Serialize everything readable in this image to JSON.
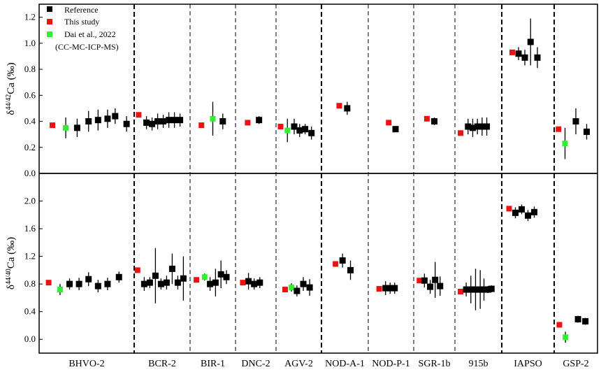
{
  "chart_data": {
    "type": "scatter",
    "categories": [
      "BHVO-2",
      "BCR-2",
      "BIR-1",
      "DNC-2",
      "AGV-2",
      "NOD-A-1",
      "NOD-P-1",
      "SGR-1b",
      "915b",
      "IAPSO",
      "GSP-2"
    ],
    "series_styles": [
      {
        "key": "reference",
        "name": "Reference",
        "color": "#000000"
      },
      {
        "key": "this_study",
        "name": "This study",
        "color": "#ee1111"
      },
      {
        "key": "dai",
        "name": "Dai et al., 2022",
        "color": "#33ee33"
      }
    ],
    "legend_note": "(CC-MC-ICP-MS)",
    "legend_placement": "top-left",
    "panels": [
      {
        "ylabel_base": "δ",
        "ylabel_sup": "44/42",
        "ylabel_rest": "Ca (‰)",
        "ylim": [
          0.0,
          1.3
        ],
        "yticks": [
          "0.0",
          "0.2",
          "0.4",
          "0.6",
          "0.8",
          "1.0",
          "1.2"
        ],
        "points": [
          {
            "cat": 0,
            "off": -0.36,
            "y": 0.37,
            "err": 0.0,
            "series": "this_study"
          },
          {
            "cat": 0,
            "off": -0.22,
            "y": 0.35,
            "err": 0.08,
            "series": "dai"
          },
          {
            "cat": 0,
            "off": -0.1,
            "y": 0.35,
            "err": 0.07,
            "series": "reference"
          },
          {
            "cat": 0,
            "off": 0.02,
            "y": 0.4,
            "err": 0.08,
            "series": "reference"
          },
          {
            "cat": 0,
            "off": 0.12,
            "y": 0.41,
            "err": 0.08,
            "series": "reference"
          },
          {
            "cat": 0,
            "off": 0.22,
            "y": 0.42,
            "err": 0.07,
            "series": "reference"
          },
          {
            "cat": 0,
            "off": 0.3,
            "y": 0.44,
            "err": 0.06,
            "series": "reference"
          },
          {
            "cat": 0,
            "off": 0.42,
            "y": 0.38,
            "err": 0.06,
            "series": "reference"
          },
          {
            "cat": 1,
            "off": -0.42,
            "y": 0.45,
            "err": 0.0,
            "series": "this_study"
          },
          {
            "cat": 1,
            "off": -0.28,
            "y": 0.39,
            "err": 0.05,
            "series": "reference"
          },
          {
            "cat": 1,
            "off": -0.18,
            "y": 0.38,
            "err": 0.05,
            "series": "reference"
          },
          {
            "cat": 1,
            "off": -0.08,
            "y": 0.4,
            "err": 0.06,
            "series": "reference"
          },
          {
            "cat": 1,
            "off": 0.02,
            "y": 0.4,
            "err": 0.05,
            "series": "reference"
          },
          {
            "cat": 1,
            "off": 0.12,
            "y": 0.41,
            "err": 0.06,
            "series": "reference"
          },
          {
            "cat": 1,
            "off": 0.22,
            "y": 0.41,
            "err": 0.06,
            "series": "reference"
          },
          {
            "cat": 1,
            "off": 0.32,
            "y": 0.41,
            "err": 0.05,
            "series": "reference"
          },
          {
            "cat": 2,
            "off": -0.25,
            "y": 0.37,
            "err": 0.0,
            "series": "this_study"
          },
          {
            "cat": 2,
            "off": 0.0,
            "y": 0.42,
            "err": 0.13,
            "series": "dai"
          },
          {
            "cat": 2,
            "off": 0.22,
            "y": 0.4,
            "err": 0.06,
            "series": "reference"
          },
          {
            "cat": 3,
            "off": -0.2,
            "y": 0.39,
            "err": 0.0,
            "series": "this_study"
          },
          {
            "cat": 3,
            "off": 0.08,
            "y": 0.41,
            "err": 0.03,
            "series": "reference"
          },
          {
            "cat": 4,
            "off": -0.4,
            "y": 0.36,
            "err": 0.0,
            "series": "this_study"
          },
          {
            "cat": 4,
            "off": -0.25,
            "y": 0.33,
            "err": 0.09,
            "series": "dai"
          },
          {
            "cat": 4,
            "off": -0.1,
            "y": 0.36,
            "err": 0.06,
            "series": "reference"
          },
          {
            "cat": 4,
            "off": 0.02,
            "y": 0.33,
            "err": 0.05,
            "series": "reference"
          },
          {
            "cat": 4,
            "off": 0.14,
            "y": 0.34,
            "err": 0.04,
            "series": "reference"
          },
          {
            "cat": 4,
            "off": 0.28,
            "y": 0.31,
            "err": 0.05,
            "series": "reference"
          },
          {
            "cat": 5,
            "off": -0.12,
            "y": 0.52,
            "err": 0.0,
            "series": "this_study"
          },
          {
            "cat": 5,
            "off": 0.05,
            "y": 0.5,
            "err": 0.05,
            "series": "reference"
          },
          {
            "cat": 6,
            "off": -0.05,
            "y": 0.39,
            "err": 0.0,
            "series": "this_study"
          },
          {
            "cat": 6,
            "off": 0.1,
            "y": 0.34,
            "err": 0.02,
            "series": "reference"
          },
          {
            "cat": 7,
            "off": -0.18,
            "y": 0.42,
            "err": 0.0,
            "series": "this_study"
          },
          {
            "cat": 7,
            "off": 0.0,
            "y": 0.4,
            "err": 0.03,
            "series": "reference"
          },
          {
            "cat": 8,
            "off": -0.38,
            "y": 0.31,
            "err": 0.0,
            "series": "this_study"
          },
          {
            "cat": 8,
            "off": -0.22,
            "y": 0.36,
            "err": 0.06,
            "series": "reference"
          },
          {
            "cat": 8,
            "off": -0.12,
            "y": 0.35,
            "err": 0.07,
            "series": "reference"
          },
          {
            "cat": 8,
            "off": -0.02,
            "y": 0.36,
            "err": 0.06,
            "series": "reference"
          },
          {
            "cat": 8,
            "off": 0.08,
            "y": 0.36,
            "err": 0.07,
            "series": "reference"
          },
          {
            "cat": 8,
            "off": 0.18,
            "y": 0.36,
            "err": 0.07,
            "series": "reference"
          },
          {
            "cat": 9,
            "off": -0.3,
            "y": 0.93,
            "err": 0.0,
            "series": "this_study"
          },
          {
            "cat": 9,
            "off": -0.18,
            "y": 0.92,
            "err": 0.05,
            "series": "reference"
          },
          {
            "cat": 9,
            "off": -0.06,
            "y": 0.89,
            "err": 0.06,
            "series": "reference"
          },
          {
            "cat": 9,
            "off": 0.05,
            "y": 1.01,
            "err": 0.18,
            "series": "reference"
          },
          {
            "cat": 9,
            "off": 0.18,
            "y": 0.89,
            "err": 0.08,
            "series": "reference"
          },
          {
            "cat": 10,
            "off": -0.4,
            "y": 0.34,
            "err": 0.0,
            "series": "this_study"
          },
          {
            "cat": 10,
            "off": -0.25,
            "y": 0.23,
            "err": 0.12,
            "series": "dai"
          },
          {
            "cat": 10,
            "off": 0.0,
            "y": 0.4,
            "err": 0.1,
            "series": "reference"
          },
          {
            "cat": 10,
            "off": 0.25,
            "y": 0.32,
            "err": 0.06,
            "series": "reference"
          }
        ]
      },
      {
        "ylabel_base": "δ",
        "ylabel_sup": "44/40",
        "ylabel_rest": "Ca (‰)",
        "ylim": [
          -0.2,
          2.4
        ],
        "yticks": [
          "0.0",
          "0.4",
          "0.8",
          "1.2",
          "1.6",
          "2.0"
        ],
        "points": [
          {
            "cat": 0,
            "off": -0.4,
            "y": 0.82,
            "err": 0.0,
            "series": "this_study"
          },
          {
            "cat": 0,
            "off": -0.28,
            "y": 0.72,
            "err": 0.08,
            "series": "dai"
          },
          {
            "cat": 0,
            "off": -0.18,
            "y": 0.8,
            "err": 0.08,
            "series": "reference"
          },
          {
            "cat": 0,
            "off": -0.08,
            "y": 0.8,
            "err": 0.09,
            "series": "reference"
          },
          {
            "cat": 0,
            "off": 0.02,
            "y": 0.87,
            "err": 0.1,
            "series": "reference"
          },
          {
            "cat": 0,
            "off": 0.12,
            "y": 0.77,
            "err": 0.09,
            "series": "reference"
          },
          {
            "cat": 0,
            "off": 0.22,
            "y": 0.8,
            "err": 0.09,
            "series": "reference"
          },
          {
            "cat": 0,
            "off": 0.34,
            "y": 0.9,
            "err": 0.08,
            "series": "reference"
          },
          {
            "cat": 1,
            "off": -0.44,
            "y": 1.0,
            "err": 0.0,
            "series": "this_study"
          },
          {
            "cat": 1,
            "off": -0.32,
            "y": 0.8,
            "err": 0.1,
            "series": "reference"
          },
          {
            "cat": 1,
            "off": -0.22,
            "y": 0.82,
            "err": 0.08,
            "series": "reference"
          },
          {
            "cat": 1,
            "off": -0.12,
            "y": 0.92,
            "err": 0.4,
            "series": "reference"
          },
          {
            "cat": 1,
            "off": -0.02,
            "y": 0.8,
            "err": 0.08,
            "series": "reference"
          },
          {
            "cat": 1,
            "off": 0.08,
            "y": 0.82,
            "err": 0.1,
            "series": "reference"
          },
          {
            "cat": 1,
            "off": 0.18,
            "y": 1.02,
            "err": 0.22,
            "series": "reference"
          },
          {
            "cat": 1,
            "off": 0.28,
            "y": 0.82,
            "err": 0.1,
            "series": "reference"
          },
          {
            "cat": 1,
            "off": 0.38,
            "y": 0.88,
            "err": 0.32,
            "series": "reference"
          },
          {
            "cat": 2,
            "off": -0.36,
            "y": 0.86,
            "err": 0.0,
            "series": "this_study"
          },
          {
            "cat": 2,
            "off": -0.18,
            "y": 0.9,
            "err": 0.05,
            "series": "dai"
          },
          {
            "cat": 2,
            "off": -0.06,
            "y": 0.8,
            "err": 0.1,
            "series": "reference"
          },
          {
            "cat": 2,
            "off": 0.06,
            "y": 0.82,
            "err": 0.2,
            "series": "reference"
          },
          {
            "cat": 2,
            "off": 0.18,
            "y": 0.94,
            "err": 0.2,
            "series": "reference"
          },
          {
            "cat": 2,
            "off": 0.3,
            "y": 0.9,
            "err": 0.1,
            "series": "reference"
          },
          {
            "cat": 3,
            "off": -0.32,
            "y": 0.82,
            "err": 0.0,
            "series": "this_study"
          },
          {
            "cat": 3,
            "off": -0.18,
            "y": 0.84,
            "err": 0.12,
            "series": "reference"
          },
          {
            "cat": 3,
            "off": -0.04,
            "y": 0.8,
            "err": 0.08,
            "series": "reference"
          },
          {
            "cat": 3,
            "off": 0.1,
            "y": 0.82,
            "err": 0.08,
            "series": "reference"
          },
          {
            "cat": 4,
            "off": -0.3,
            "y": 0.72,
            "err": 0.0,
            "series": "this_study"
          },
          {
            "cat": 4,
            "off": -0.16,
            "y": 0.75,
            "err": 0.06,
            "series": "dai"
          },
          {
            "cat": 4,
            "off": -0.04,
            "y": 0.7,
            "err": 0.08,
            "series": "reference"
          },
          {
            "cat": 4,
            "off": 0.1,
            "y": 0.8,
            "err": 0.1,
            "series": "reference"
          },
          {
            "cat": 4,
            "off": 0.24,
            "y": 0.75,
            "err": 0.12,
            "series": "reference"
          },
          {
            "cat": 5,
            "off": -0.2,
            "y": 1.09,
            "err": 0.0,
            "series": "this_study"
          },
          {
            "cat": 5,
            "off": -0.05,
            "y": 1.14,
            "err": 0.1,
            "series": "reference"
          },
          {
            "cat": 5,
            "off": 0.12,
            "y": 1.0,
            "err": 0.14,
            "series": "reference"
          },
          {
            "cat": 6,
            "off": -0.26,
            "y": 0.73,
            "err": 0.0,
            "series": "this_study"
          },
          {
            "cat": 6,
            "off": -0.12,
            "y": 0.74,
            "err": 0.1,
            "series": "reference"
          },
          {
            "cat": 6,
            "off": -0.02,
            "y": 0.74,
            "err": 0.08,
            "series": "reference"
          },
          {
            "cat": 6,
            "off": 0.08,
            "y": 0.74,
            "err": 0.08,
            "series": "reference"
          },
          {
            "cat": 7,
            "off": -0.36,
            "y": 0.85,
            "err": 0.0,
            "series": "this_study"
          },
          {
            "cat": 7,
            "off": -0.24,
            "y": 0.85,
            "err": 0.1,
            "series": "reference"
          },
          {
            "cat": 7,
            "off": -0.1,
            "y": 0.76,
            "err": 0.1,
            "series": "reference"
          },
          {
            "cat": 7,
            "off": 0.02,
            "y": 0.86,
            "err": 0.26,
            "series": "reference"
          },
          {
            "cat": 7,
            "off": 0.14,
            "y": 0.77,
            "err": 0.14,
            "series": "reference"
          },
          {
            "cat": 8,
            "off": -0.38,
            "y": 0.69,
            "err": 0.0,
            "series": "this_study"
          },
          {
            "cat": 8,
            "off": -0.26,
            "y": 0.72,
            "err": 0.1,
            "series": "reference"
          },
          {
            "cat": 8,
            "off": -0.16,
            "y": 0.72,
            "err": 0.2,
            "series": "reference"
          },
          {
            "cat": 8,
            "off": -0.06,
            "y": 0.72,
            "err": 0.3,
            "series": "reference"
          },
          {
            "cat": 8,
            "off": 0.04,
            "y": 0.72,
            "err": 0.28,
            "series": "reference"
          },
          {
            "cat": 8,
            "off": 0.12,
            "y": 0.72,
            "err": 0.16,
            "series": "reference"
          },
          {
            "cat": 8,
            "off": 0.2,
            "y": 0.72,
            "err": 0.05,
            "series": "reference"
          },
          {
            "cat": 8,
            "off": 0.28,
            "y": 0.73,
            "err": 0.05,
            "series": "reference"
          },
          {
            "cat": 9,
            "off": -0.36,
            "y": 1.89,
            "err": 0.0,
            "series": "this_study"
          },
          {
            "cat": 9,
            "off": -0.24,
            "y": 1.83,
            "err": 0.08,
            "series": "reference"
          },
          {
            "cat": 9,
            "off": -0.12,
            "y": 1.88,
            "err": 0.07,
            "series": "reference"
          },
          {
            "cat": 9,
            "off": 0.0,
            "y": 1.79,
            "err": 0.08,
            "series": "reference"
          },
          {
            "cat": 9,
            "off": 0.12,
            "y": 1.84,
            "err": 0.08,
            "series": "reference"
          },
          {
            "cat": 10,
            "off": -0.38,
            "y": 0.21,
            "err": 0.0,
            "series": "this_study"
          },
          {
            "cat": 10,
            "off": -0.24,
            "y": 0.03,
            "err": 0.08,
            "series": "dai"
          },
          {
            "cat": 10,
            "off": 0.05,
            "y": 0.29,
            "err": 0.05,
            "series": "reference"
          },
          {
            "cat": 10,
            "off": 0.22,
            "y": 0.26,
            "err": 0.05,
            "series": "reference"
          }
        ]
      }
    ]
  }
}
